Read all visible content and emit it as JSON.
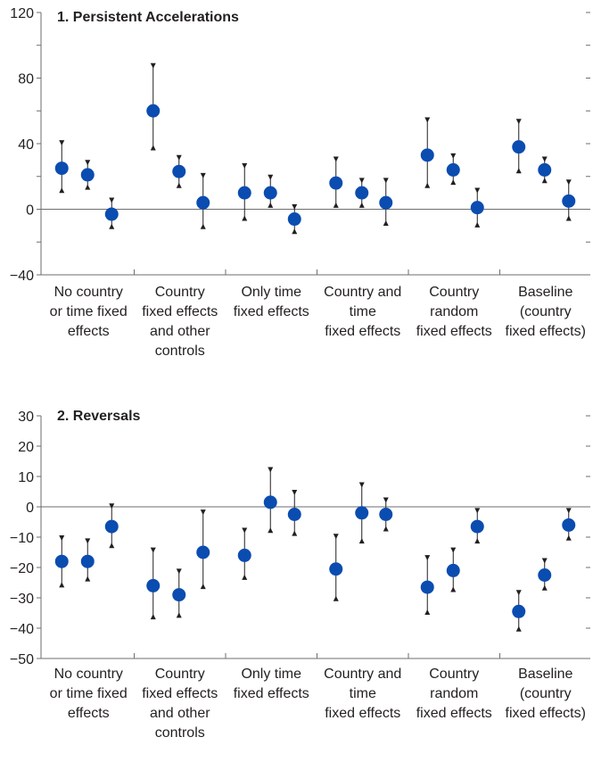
{
  "chart_data": [
    {
      "type": "scatter",
      "title": "1. Persistent Accelerations",
      "ylim": [
        -40,
        120
      ],
      "yticks_labeled": [
        -40,
        0,
        40,
        80,
        120
      ],
      "yticks_minor": [
        -20,
        20,
        60,
        100
      ],
      "zero_line": true,
      "grid": false,
      "categories": [
        [
          "No country",
          "or time fixed",
          "effects"
        ],
        [
          "Country",
          "fixed effects",
          "and other",
          "controls"
        ],
        [
          "Only time",
          "fixed effects"
        ],
        [
          "Country and",
          "time",
          "fixed effects"
        ],
        [
          "Country",
          "random",
          "fixed effects"
        ],
        [
          "Baseline",
          "(country",
          "fixed effects)"
        ]
      ],
      "points": [
        [
          {
            "y": 25,
            "low": 11,
            "high": 41
          },
          {
            "y": 21,
            "low": 13,
            "high": 29
          },
          {
            "y": -3,
            "low": -11,
            "high": 6
          }
        ],
        [
          {
            "y": 60,
            "low": 37,
            "high": 88
          },
          {
            "y": 23,
            "low": 14,
            "high": 32
          },
          {
            "y": 4,
            "low": -11,
            "high": 21
          }
        ],
        [
          {
            "y": 10,
            "low": -6,
            "high": 27
          },
          {
            "y": 10,
            "low": 2,
            "high": 20
          },
          {
            "y": -6,
            "low": -14,
            "high": 2
          }
        ],
        [
          {
            "y": 16,
            "low": 2,
            "high": 31
          },
          {
            "y": 10,
            "low": 2,
            "high": 18
          },
          {
            "y": 4,
            "low": -9,
            "high": 18
          }
        ],
        [
          {
            "y": 33,
            "low": 14,
            "high": 55
          },
          {
            "y": 24,
            "low": 16,
            "high": 33
          },
          {
            "y": 1,
            "low": -10,
            "high": 12
          }
        ],
        [
          {
            "y": 38,
            "low": 23,
            "high": 54
          },
          {
            "y": 24,
            "low": 17,
            "high": 31
          },
          {
            "y": 5,
            "low": -6,
            "high": 17
          }
        ]
      ],
      "colors": {
        "marker": "#0a4cb0",
        "errorbar": "#231f20",
        "axis": "#6d6e71"
      }
    },
    {
      "type": "scatter",
      "title": "2. Reversals",
      "ylim": [
        -50,
        30
      ],
      "yticks_labeled": [
        -50,
        -40,
        -30,
        -20,
        -10,
        0,
        10,
        20,
        30
      ],
      "yticks_minor": [],
      "zero_line": true,
      "grid": false,
      "categories": [
        [
          "No country",
          "or time fixed",
          "effects"
        ],
        [
          "Country",
          "fixed effects",
          "and other",
          "controls"
        ],
        [
          "Only time",
          "fixed effects"
        ],
        [
          "Country and",
          "time",
          "fixed effects"
        ],
        [
          "Country",
          "random",
          "fixed effects"
        ],
        [
          "Baseline",
          "(country",
          "fixed effects)"
        ]
      ],
      "points": [
        [
          {
            "y": -18,
            "low": -26,
            "high": -10
          },
          {
            "y": -18,
            "low": -24,
            "high": -11
          },
          {
            "y": -6.5,
            "low": -13,
            "high": 0.5
          }
        ],
        [
          {
            "y": -26,
            "low": -36.5,
            "high": -14
          },
          {
            "y": -29,
            "low": -36,
            "high": -21
          },
          {
            "y": -15,
            "low": -26.5,
            "high": -1.5
          }
        ],
        [
          {
            "y": -16,
            "low": -23.5,
            "high": -7.5
          },
          {
            "y": 1.5,
            "low": -8,
            "high": 12.5
          },
          {
            "y": -2.5,
            "low": -9,
            "high": 5
          }
        ],
        [
          {
            "y": -20.5,
            "low": -30.5,
            "high": -9.5
          },
          {
            "y": -2,
            "low": -11.5,
            "high": 7.5
          },
          {
            "y": -2.5,
            "low": -7.5,
            "high": 2.5
          }
        ],
        [
          {
            "y": -26.5,
            "low": -35,
            "high": -16.5
          },
          {
            "y": -21,
            "low": -27.5,
            "high": -14
          },
          {
            "y": -6.5,
            "low": -11.5,
            "high": -1
          }
        ],
        [
          {
            "y": -34.5,
            "low": -40.5,
            "high": -28
          },
          {
            "y": -22.5,
            "low": -27,
            "high": -17.5
          },
          {
            "y": -6,
            "low": -10.5,
            "high": -1
          }
        ]
      ],
      "colors": {
        "marker": "#0a4cb0",
        "errorbar": "#231f20",
        "axis": "#6d6e71"
      }
    }
  ]
}
